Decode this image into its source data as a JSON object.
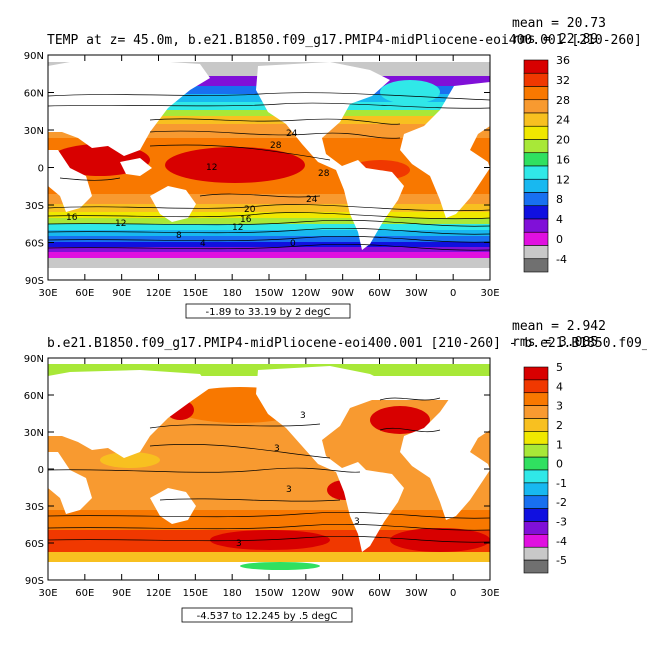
{
  "chart_data": [
    {
      "type": "heatmap",
      "title": "TEMP at z=  45.0m, b.e21.B1850.f09_g17.PMIP4-midPliocene-eoi400.001 [210-260]",
      "stats": {
        "mean": "mean = 20.73",
        "rms": "rms = 22.89"
      },
      "range_label": "-1.89 to 33.19 by 2 degC",
      "x_ticks": [
        "30E",
        "60E",
        "90E",
        "120E",
        "150E",
        "180",
        "150W",
        "120W",
        "90W",
        "60W",
        "30W",
        "0",
        "30E"
      ],
      "y_ticks": [
        "90N",
        "60N",
        "30N",
        "0",
        "30S",
        "60S",
        "90S"
      ],
      "colorbar": {
        "labels": [
          "36",
          "32",
          "28",
          "24",
          "20",
          "16",
          "12",
          "8",
          "4",
          "0",
          "-4"
        ],
        "colors": [
          "#d80000",
          "#f03800",
          "#f87800",
          "#f89a30",
          "#f8c020",
          "#f0e800",
          "#a8e838",
          "#30e060",
          "#30e8e8",
          "#18b8f0",
          "#1870f0",
          "#1010e0",
          "#8010d8",
          "#e010e0",
          "#c8c8c8",
          "#707070"
        ]
      },
      "contour_labels": [
        "28",
        "24",
        "12",
        "28",
        "24",
        "20",
        "16",
        "12",
        "8",
        "4",
        "0",
        "16",
        "12"
      ]
    },
    {
      "type": "heatmap",
      "title": "b.e21.B1850.f09_g17.PMIP4-midPliocene-eoi400.001 [210-260] - b.e21.B1850.f09_g",
      "stats": {
        "mean": "mean = 2.942",
        "rms": "rms = 3.085"
      },
      "range_label": "-4.537 to 12.245 by .5 degC",
      "x_ticks": [
        "30E",
        "60E",
        "90E",
        "120E",
        "150E",
        "180",
        "150W",
        "120W",
        "90W",
        "60W",
        "30W",
        "0",
        "30E"
      ],
      "y_ticks": [
        "90N",
        "60N",
        "30N",
        "0",
        "30S",
        "60S",
        "90S"
      ],
      "colorbar": {
        "labels": [
          "5",
          "4",
          "3",
          "2",
          "1",
          "0",
          "-1",
          "-2",
          "-3",
          "-4",
          "-5"
        ],
        "colors": [
          "#d80000",
          "#f03800",
          "#f87800",
          "#f89a30",
          "#f8c020",
          "#f0e800",
          "#a8e838",
          "#30e060",
          "#30e8e8",
          "#18b8f0",
          "#1870f0",
          "#1010e0",
          "#8010d8",
          "#e010e0",
          "#c8c8c8",
          "#707070"
        ]
      },
      "contour_labels": [
        "3",
        "3",
        "3",
        "3",
        "3"
      ]
    }
  ]
}
